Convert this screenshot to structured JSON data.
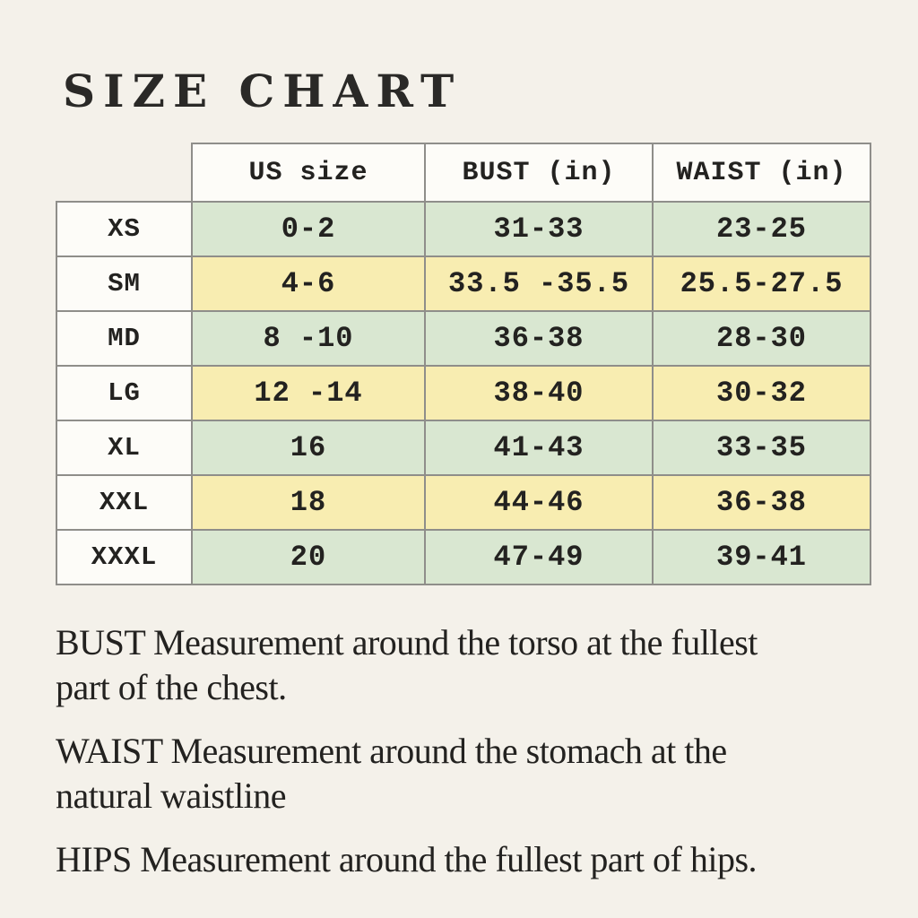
{
  "title": "SIZE CHART",
  "theme": {
    "page_bg": "#f4f1ea",
    "cell_bg": "#fdfcf8",
    "green": "#d9e7d1",
    "yellow": "#f8edb1",
    "border": "#8f8e8a",
    "ink": "#232220",
    "title_ink": "#2a2927"
  },
  "table": {
    "columns": [
      "US size",
      "BUST (in)",
      "WAIST (in)"
    ],
    "rows": [
      {
        "size": "XS",
        "us": "0-2",
        "bust": "31-33",
        "waist": "23-25",
        "color": "green"
      },
      {
        "size": "SM",
        "us": "4-6",
        "bust": "33.5 -35.5",
        "waist": "25.5-27.5",
        "color": "yellow"
      },
      {
        "size": "MD",
        "us": "8 -10",
        "bust": "36-38",
        "waist": "28-30",
        "color": "green"
      },
      {
        "size": "LG",
        "us": "12 -14",
        "bust": "38-40",
        "waist": "30-32",
        "color": "yellow"
      },
      {
        "size": "XL",
        "us": "16",
        "bust": "41-43",
        "waist": "33-35",
        "color": "green"
      },
      {
        "size": "XXL",
        "us": "18",
        "bust": "44-46",
        "waist": "36-38",
        "color": "yellow"
      },
      {
        "size": "XXXL",
        "us": "20",
        "bust": "47-49",
        "waist": "39-41",
        "color": "green"
      }
    ]
  },
  "footnotes": [
    {
      "lines": [
        "BUST Measurement around the torso at the fullest",
        "part of the chest."
      ]
    },
    {
      "lines": [
        "WAIST Measurement around the stomach at the",
        "natural waistline"
      ]
    },
    {
      "lines": [
        "HIPS Measurement around the fullest part of hips."
      ]
    }
  ]
}
